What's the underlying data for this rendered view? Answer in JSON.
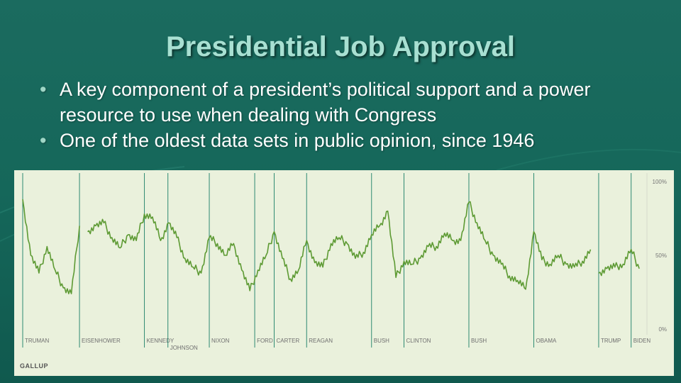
{
  "slide": {
    "title": "Presidential Job Approval",
    "bullets": [
      "A key component of a president’s political support and a power resource to use when dealing with Congress",
      "One of the oldest data sets in public opinion, since 1946"
    ]
  },
  "colors": {
    "background": "#15675a",
    "title": "#a8e0d2",
    "line": "#5d9a33",
    "divider": "#2e8a72",
    "panel": "#eaf1dc"
  },
  "chart_data": {
    "type": "line",
    "title": "",
    "xlabel": "",
    "ylabel": "",
    "source": "GALLUP",
    "ylim": [
      0,
      100
    ],
    "y_ticks": [
      "100%",
      "50%",
      "0%"
    ],
    "x": [
      1946,
      1947,
      1948,
      1949,
      1950,
      1951,
      1952,
      1953,
      1954,
      1955,
      1956,
      1957,
      1958,
      1959,
      1960,
      1961,
      1962,
      1963,
      1964,
      1965,
      1966,
      1967,
      1968,
      1969,
      1970,
      1971,
      1972,
      1973,
      1974,
      1975,
      1976,
      1977,
      1978,
      1979,
      1980,
      1981,
      1982,
      1983,
      1984,
      1985,
      1986,
      1987,
      1988,
      1989,
      1990,
      1991,
      1992,
      1993,
      1994,
      1995,
      1996,
      1997,
      1998,
      1999,
      2000,
      2001,
      2002,
      2003,
      2004,
      2005,
      2006,
      2007,
      2008,
      2009,
      2010,
      2011,
      2012,
      2013,
      2014,
      2015,
      2016,
      2017,
      2018,
      2019,
      2020,
      2021,
      2022
    ],
    "series": [
      {
        "values": [
          88,
          50,
          38,
          56,
          40,
          28,
          24,
          70,
          66,
          70,
          72,
          62,
          55,
          64,
          60,
          78,
          76,
          60,
          72,
          62,
          48,
          42,
          38,
          62,
          58,
          50,
          58,
          40,
          26,
          40,
          50,
          66,
          48,
          34,
          40,
          60,
          45,
          42,
          58,
          62,
          58,
          48,
          52,
          64,
          70,
          80,
          35,
          46,
          44,
          48,
          56,
          56,
          65,
          60,
          60,
          86,
          72,
          60,
          50,
          44,
          36,
          33,
          27,
          66,
          47,
          44,
          50,
          44,
          42,
          46,
          54,
          38,
          41,
          42,
          44,
          54,
          41
        ],
        "gaps_after": [
          1953,
          2016
        ]
      }
    ],
    "presidents": [
      {
        "name": "TRUMAN",
        "start": 1946
      },
      {
        "name": "EISENHOWER",
        "start": 1953
      },
      {
        "name": "KENNEDY",
        "start": 1961
      },
      {
        "name": "JOHNSON",
        "start": 1963.9
      },
      {
        "name": "NIXON",
        "start": 1969
      },
      {
        "name": "FORD",
        "start": 1974.6
      },
      {
        "name": "CARTER",
        "start": 1977
      },
      {
        "name": "REAGAN",
        "start": 1981
      },
      {
        "name": "BUSH",
        "start": 1989
      },
      {
        "name": "CLINTON",
        "start": 1993
      },
      {
        "name": "BUSH",
        "start": 2001
      },
      {
        "name": "OBAMA",
        "start": 2009
      },
      {
        "name": "TRUMP",
        "start": 2017
      },
      {
        "name": "BIDEN",
        "start": 2021
      }
    ]
  }
}
